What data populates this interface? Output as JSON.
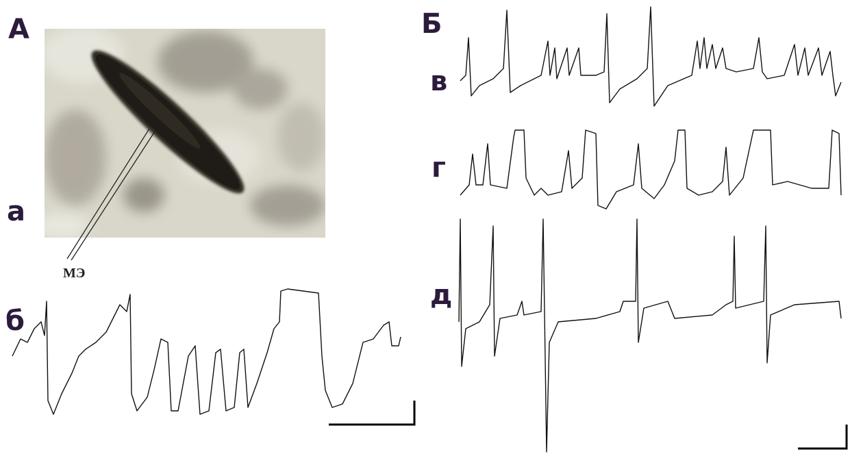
{
  "panel_labels": {
    "A": "А",
    "a": "а",
    "b_small": "б",
    "B": "Б",
    "v": "в",
    "g": "г",
    "d": "д"
  },
  "electrode_label": "МЭ"
}
